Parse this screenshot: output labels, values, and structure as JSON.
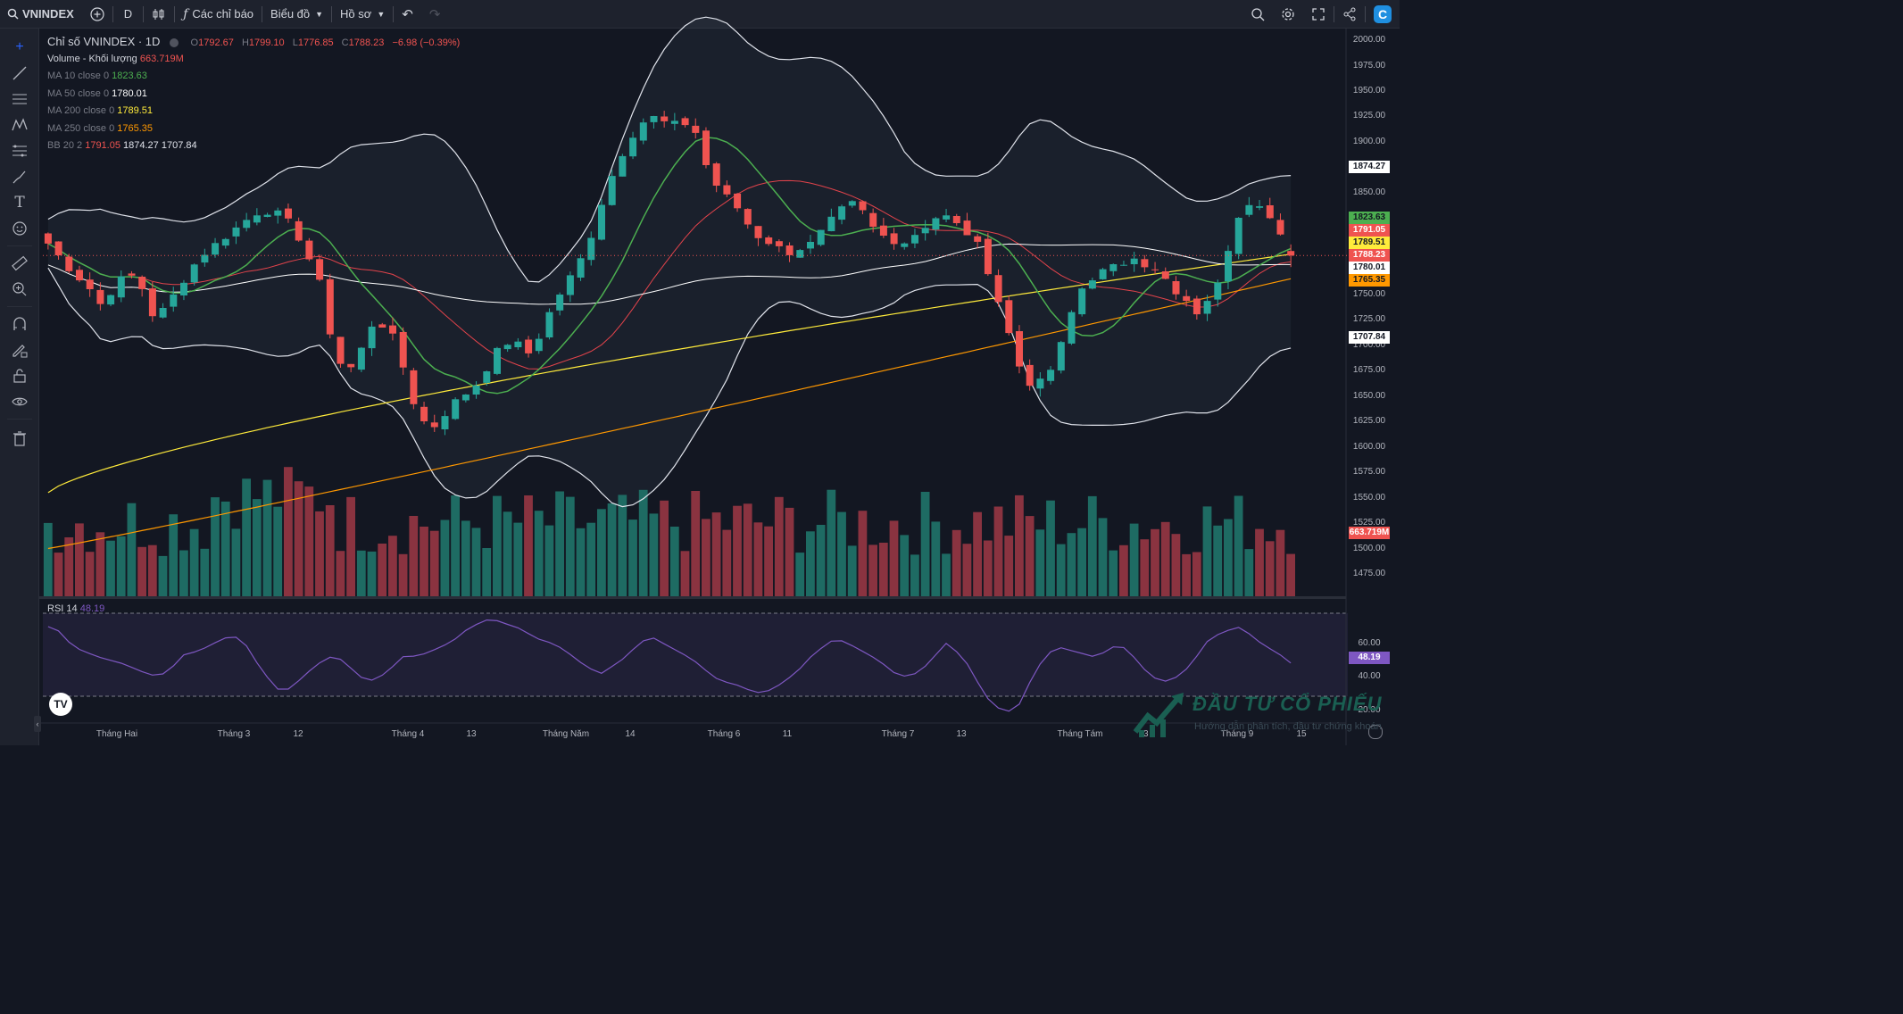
{
  "toolbar": {
    "symbol": "VNINDEX",
    "interval": "D",
    "indicators_label": "Các chỉ báo",
    "chart_label": "Biểu đồ",
    "profile_label": "Hồ sơ"
  },
  "legend": {
    "title": "Chỉ số VNINDEX · 1D",
    "o_label": "O",
    "o_value": "1792.67",
    "h_label": "H",
    "h_value": "1799.10",
    "l_label": "L",
    "l_value": "1776.85",
    "c_label": "C",
    "c_value": "1788.23",
    "change": "−6.98 (−0.39%)",
    "volume_label": "Volume - Khối lượng",
    "volume_value": "663.719M",
    "ma10_label": "MA 10 close 0",
    "ma10_value": "1823.63",
    "ma50_label": "MA 50 close 0",
    "ma50_value": "1780.01",
    "ma200_label": "MA 200 close 0",
    "ma200_value": "1789.51",
    "ma250_label": "MA 250 close 0",
    "ma250_value": "1765.35",
    "bb_label": "BB 20 2",
    "bb_basis": "1791.05",
    "bb_upper": "1874.27",
    "bb_lower": "1707.84",
    "rsi_label": "RSI 14",
    "rsi_value": "48.19"
  },
  "price_labels": {
    "bb_upper": "1874.27",
    "ma10": "1823.63",
    "bb_basis": "1791.05",
    "ma200": "1789.51",
    "close": "1788.23",
    "ma50": "1780.01",
    "ma250": "1765.35",
    "bb_lower": "1707.84",
    "volume": "663.719M",
    "rsi": "48.19"
  },
  "price_ticks": [
    "2000.00",
    "1975.00",
    "1950.00",
    "1925.00",
    "1900.00",
    "1875.00",
    "1850.00",
    "1825.00",
    "1800.00",
    "1775.00",
    "1750.00",
    "1725.00",
    "1700.00",
    "1675.00",
    "1650.00",
    "1625.00",
    "1600.00",
    "1575.00",
    "1550.00",
    "1525.00",
    "1500.00",
    "1475.00"
  ],
  "rsi_ticks": [
    "60.00",
    "40.00",
    "20.00"
  ],
  "time_labels": [
    "Tháng Hai",
    "Tháng 3",
    "12",
    "Tháng 4",
    "13",
    "Tháng Năm",
    "14",
    "Tháng 6",
    "11",
    "Tháng 7",
    "13",
    "Tháng Tám",
    "13",
    "Tháng 9",
    "15"
  ],
  "watermark": {
    "title": "ĐẦU TƯ CỔ PHIẾU",
    "subtitle": "Hướng dẫn phân tích, đầu tư chứng khoán"
  },
  "colors": {
    "up": "#26a69a",
    "down": "#ef5350",
    "vol_up": "#1e6b63",
    "vol_down": "#8a3340",
    "ma10": "#4caf50",
    "ma50": "#ffffff",
    "ma200": "#ffeb3b",
    "ma250": "#ff9800",
    "bb_basis": "#e2434b",
    "bb_band": "#e0e3eb",
    "rsi": "#7e57c2"
  },
  "chart_data": {
    "type": "candlestick",
    "symbol": "VNINDEX",
    "interval": "1D",
    "y_range": [
      1460,
      2010
    ],
    "rsi_range": [
      15,
      78
    ],
    "rsi_bands": [
      70,
      30
    ],
    "key_points": {
      "close": [
        1800,
        1785,
        1770,
        1760,
        1740,
        1755,
        1770,
        1765,
        1730,
        1735,
        1755,
        1775,
        1790,
        1800,
        1810,
        1820,
        1830,
        1832,
        1828,
        1815,
        1790,
        1760,
        1700,
        1670,
        1690,
        1720,
        1720,
        1700,
        1650,
        1625,
        1620,
        1640,
        1650,
        1660,
        1680,
        1700,
        1705,
        1690,
        1710,
        1740,
        1760,
        1780,
        1810,
        1850,
        1880,
        1905,
        1920,
        1925,
        1915,
        1920,
        1910,
        1870,
        1850,
        1840,
        1820,
        1805,
        1800,
        1790,
        1795,
        1800,
        1815,
        1830,
        1840,
        1830,
        1810,
        1805,
        1800,
        1810,
        1820,
        1830,
        1820,
        1810,
        1795,
        1760,
        1720,
        1680,
        1660,
        1665,
        1690,
        1730,
        1760,
        1770,
        1775,
        1780,
        1790,
        1775,
        1770,
        1750,
        1740,
        1730,
        1750,
        1790,
        1830,
        1845,
        1830,
        1810,
        1790
      ],
      "rsi": [
        70,
        67,
        58,
        55,
        52,
        50,
        48,
        45,
        42,
        40,
        45,
        53,
        55,
        58,
        62,
        65,
        60,
        48,
        38,
        30,
        35,
        42,
        48,
        52,
        50,
        42,
        37,
        40,
        46,
        53,
        52,
        55,
        58,
        62,
        68,
        72,
        75,
        72,
        70,
        66,
        62,
        60,
        56,
        50,
        45,
        42,
        47,
        52,
        60,
        64,
        60,
        56,
        52,
        47,
        40,
        37,
        35,
        32,
        30,
        33,
        38,
        44,
        52,
        58,
        63,
        60,
        56,
        52,
        47,
        41,
        40,
        44,
        52,
        60,
        54,
        45,
        30,
        22,
        19,
        24,
        40,
        52,
        58,
        56,
        54,
        52,
        55,
        60,
        54,
        45,
        39,
        37,
        41,
        48,
        60,
        65,
        68,
        70,
        63,
        58,
        54,
        48
      ]
    },
    "last": {
      "open": 1792.67,
      "high": 1799.1,
      "low": 1776.85,
      "close": 1788.23,
      "volume": "663.719M",
      "rsi": 48.19
    },
    "series": [
      {
        "name": "MA 10 close 0",
        "last": 1823.63
      },
      {
        "name": "MA 50 close 0",
        "last": 1780.01
      },
      {
        "name": "MA 200 close 0",
        "last": 1789.51
      },
      {
        "name": "MA 250 close 0",
        "last": 1765.35
      },
      {
        "name": "BB 20 2",
        "basis": 1791.05,
        "upper": 1874.27,
        "lower": 1707.84
      },
      {
        "name": "RSI 14",
        "last": 48.19
      }
    ]
  }
}
